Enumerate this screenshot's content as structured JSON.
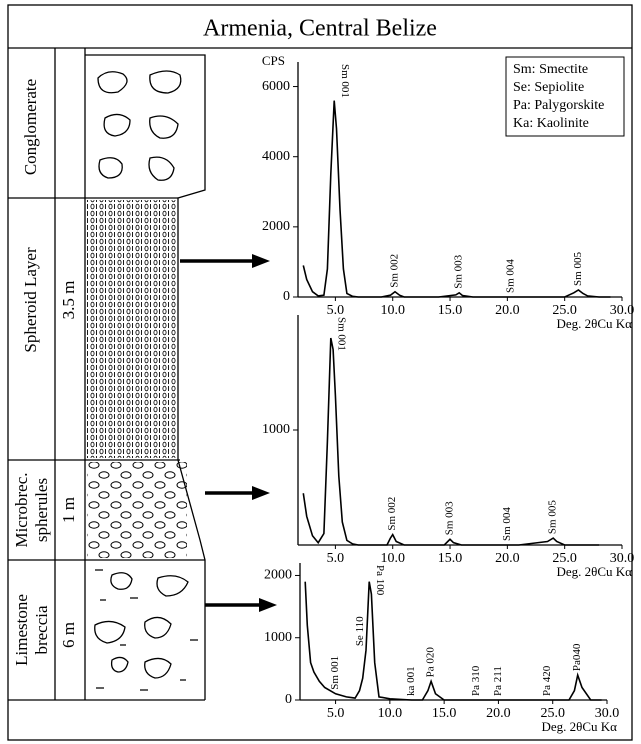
{
  "title": "Armenia, Central Belize",
  "units": [
    {
      "lines": [
        "Conglomerate"
      ]
    },
    {
      "lines": [
        "Spheroid Layer"
      ],
      "thickness": "3.5 m"
    },
    {
      "lines": [
        "Microbrec.",
        "spherules"
      ],
      "thickness": "1 m"
    },
    {
      "lines": [
        "Limestone",
        "breccia"
      ],
      "thickness": "6 m"
    }
  ],
  "legend": [
    "Sm: Smectite",
    "Se: Sepiolite",
    "Pa: Palygorskite",
    "Ka: Kaolinite"
  ],
  "chart_data": [
    {
      "type": "line",
      "ylabel": "CPS",
      "xlabel": "Deg. 2θCu Kα",
      "color": "#000000",
      "x": [
        2.2,
        2.5,
        3,
        3.5,
        4,
        4.3,
        4.6,
        4.9,
        5.1,
        5.4,
        5.7,
        6,
        6.5,
        7,
        8,
        9,
        9.8,
        10.2,
        10.6,
        11,
        12,
        14,
        15.5,
        15.8,
        16.1,
        17,
        19,
        20,
        21,
        23,
        25,
        25.8,
        26.2,
        26.6,
        27,
        28,
        29
      ],
      "values": [
        900,
        500,
        150,
        30,
        50,
        800,
        3500,
        5600,
        4800,
        2500,
        800,
        100,
        20,
        0,
        0,
        0,
        50,
        150,
        50,
        0,
        0,
        0,
        60,
        120,
        40,
        0,
        0,
        0,
        0,
        0,
        0,
        120,
        200,
        100,
        30,
        0,
        0
      ],
      "xlim": [
        2,
        30
      ],
      "ylim": [
        0,
        6700
      ],
      "xticks": [
        {
          "value": 5,
          "label": "5.0"
        },
        {
          "value": 10,
          "label": "10.0"
        },
        {
          "value": 15,
          "label": "15.0"
        },
        {
          "value": 20,
          "label": "20.0"
        },
        {
          "value": 25,
          "label": "25.0"
        },
        {
          "value": 30,
          "label": "30.0"
        }
      ],
      "yticks": [
        0,
        2000,
        4000,
        6000
      ],
      "annotations": [
        {
          "text": "Sm 001",
          "x": 5
        },
        {
          "text": "Sm 002",
          "x": 10.2
        },
        {
          "text": "Sm 003",
          "x": 15.8
        },
        {
          "text": "Sm 004",
          "x": 20.3
        },
        {
          "text": "Sm 005",
          "x": 26.2
        }
      ]
    },
    {
      "type": "line",
      "xlabel": "Deg. 2θCu Kα",
      "color": "#000000",
      "x": [
        2.2,
        2.5,
        3,
        3.5,
        4,
        4.3,
        4.6,
        4.8,
        5,
        5.3,
        5.6,
        6,
        6.5,
        7,
        8,
        9.5,
        9.8,
        10,
        10.3,
        11,
        12,
        14.5,
        15,
        15.3,
        16,
        19,
        21,
        23.5,
        24,
        24.3,
        25,
        27,
        28
      ],
      "values": [
        450,
        250,
        80,
        20,
        100,
        900,
        1800,
        1700,
        1300,
        600,
        200,
        40,
        10,
        0,
        0,
        0,
        60,
        90,
        30,
        0,
        0,
        0,
        50,
        20,
        0,
        0,
        0,
        30,
        60,
        30,
        0,
        0,
        0
      ],
      "xlim": [
        2,
        30
      ],
      "ylim": [
        0,
        2000
      ],
      "xticks": [
        {
          "value": 5,
          "label": "5.0"
        },
        {
          "value": 10,
          "label": "10.0"
        },
        {
          "value": 15,
          "label": "15.0"
        },
        {
          "value": 20,
          "label": "20.0"
        },
        {
          "value": 25,
          "label": "25.0"
        },
        {
          "value": 30,
          "label": "30.0"
        }
      ],
      "yticks": [
        1000
      ],
      "annotations": [
        {
          "text": "Sm 001",
          "x": 4.7
        },
        {
          "text": "Sm 002",
          "x": 10
        },
        {
          "text": "Sm 003",
          "x": 15
        },
        {
          "text": "Sm 004",
          "x": 20
        },
        {
          "text": "Sm 005",
          "x": 24
        }
      ]
    },
    {
      "type": "line",
      "xlabel": "Deg. 2θCu Kα",
      "color": "#000000",
      "x": [
        2.2,
        2.4,
        2.7,
        3,
        3.5,
        4,
        5,
        6,
        6.8,
        7.2,
        7.5,
        7.8,
        8.1,
        8.3,
        8.6,
        9,
        10,
        11,
        12,
        13,
        13.5,
        13.8,
        14.2,
        15,
        17,
        20,
        23,
        25,
        26.5,
        27,
        27.3,
        27.7,
        28.5,
        29.5
      ],
      "values": [
        1900,
        1200,
        600,
        450,
        300,
        200,
        100,
        50,
        30,
        150,
        350,
        800,
        1900,
        1700,
        600,
        50,
        20,
        10,
        0,
        0,
        150,
        300,
        100,
        0,
        0,
        0,
        0,
        0,
        0,
        150,
        400,
        200,
        0,
        0
      ],
      "xlim": [
        2,
        30
      ],
      "ylim": [
        0,
        2200
      ],
      "xticks": [
        {
          "value": 5,
          "label": "5.0"
        },
        {
          "value": 10,
          "label": "10.0"
        },
        {
          "value": 15,
          "label": "15.0"
        },
        {
          "value": 20,
          "label": "20.0"
        },
        {
          "value": 25,
          "label": "25.0"
        },
        {
          "value": 30,
          "label": "30.0"
        }
      ],
      "yticks": [
        0,
        1000,
        2000
      ],
      "annotations": [
        {
          "text": "Sm 001",
          "x": 5
        },
        {
          "text": "Se 110",
          "x": 7.3
        },
        {
          "text": "Pa 100",
          "x": 8.2
        },
        {
          "text": "ka 001",
          "x": 12
        },
        {
          "text": "Pa 020",
          "x": 13.8
        },
        {
          "text": "Pa 310",
          "x": 18
        },
        {
          "text": "Pa 211",
          "x": 20
        },
        {
          "text": "Pa 420",
          "x": 24.5
        },
        {
          "text": "Pa040",
          "x": 27.3
        }
      ]
    }
  ]
}
